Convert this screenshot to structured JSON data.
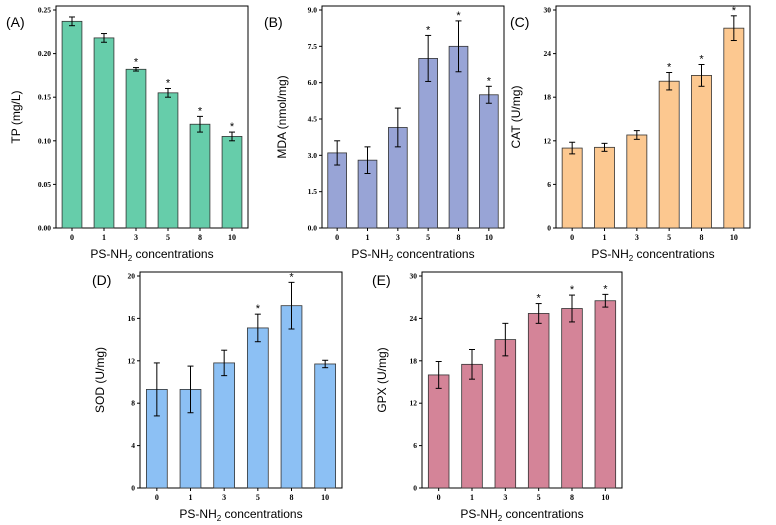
{
  "chart_data": [
    {
      "type": "bar",
      "panel_label": "(A)",
      "categories": [
        "0",
        "1",
        "3",
        "5",
        "8",
        "10"
      ],
      "values": [
        0.237,
        0.218,
        0.182,
        0.155,
        0.119,
        0.105
      ],
      "errors": [
        0.005,
        0.005,
        0.002,
        0.005,
        0.009,
        0.005
      ],
      "significant": [
        false,
        false,
        true,
        true,
        true,
        true
      ],
      "ylabel": "TP (mg/L)",
      "xlabel": "PS-NH2 concentrations",
      "ylim": [
        0,
        0.25
      ],
      "yticks": [
        "0.00",
        "0.05",
        "0.10",
        "0.15",
        "0.20",
        "0.25"
      ],
      "color": "#66cdaa"
    },
    {
      "type": "bar",
      "panel_label": "(B)",
      "categories": [
        "0",
        "1",
        "3",
        "5",
        "8",
        "10"
      ],
      "values": [
        3.1,
        2.8,
        4.15,
        7.0,
        7.5,
        5.5
      ],
      "errors": [
        0.5,
        0.55,
        0.8,
        0.95,
        1.05,
        0.35
      ],
      "significant": [
        false,
        false,
        false,
        true,
        true,
        true
      ],
      "ylabel": "MDA (nmol/mg)",
      "xlabel": "PS-NH2 concentrations",
      "ylim": [
        0,
        9.0
      ],
      "yticks": [
        "0.0",
        "1.5",
        "3.0",
        "4.5",
        "6.0",
        "7.5",
        "9.0"
      ],
      "color": "#98a4d6"
    },
    {
      "type": "bar",
      "panel_label": "(C)",
      "categories": [
        "0",
        "1",
        "3",
        "5",
        "8",
        "10"
      ],
      "values": [
        11.0,
        11.1,
        12.8,
        20.2,
        21.0,
        27.5
      ],
      "errors": [
        0.8,
        0.55,
        0.6,
        1.2,
        1.5,
        1.7
      ],
      "significant": [
        false,
        false,
        false,
        true,
        true,
        true
      ],
      "ylabel": "CAT (U/mg)",
      "xlabel": "PS-NH2 concentrations",
      "ylim": [
        0,
        30
      ],
      "yticks": [
        "0",
        "6",
        "12",
        "18",
        "24",
        "30"
      ],
      "color": "#fcc890"
    },
    {
      "type": "bar",
      "panel_label": "(D)",
      "categories": [
        "0",
        "1",
        "3",
        "5",
        "8",
        "10"
      ],
      "values": [
        9.3,
        9.3,
        11.8,
        15.1,
        17.2,
        11.7
      ],
      "errors": [
        2.5,
        2.2,
        1.2,
        1.3,
        2.2,
        0.35
      ],
      "significant": [
        false,
        false,
        false,
        true,
        true,
        false
      ],
      "ylabel": "SOD (U/mg)",
      "xlabel": "PS-NH2 concentrations",
      "ylim": [
        0,
        20
      ],
      "yticks": [
        "0",
        "4",
        "8",
        "12",
        "16",
        "20"
      ],
      "color": "#8cc0f4"
    },
    {
      "type": "bar",
      "panel_label": "(E)",
      "categories": [
        "0",
        "1",
        "3",
        "5",
        "8",
        "10"
      ],
      "values": [
        16.0,
        17.5,
        21.0,
        24.7,
        25.4,
        26.5
      ],
      "errors": [
        1.9,
        2.1,
        2.3,
        1.4,
        1.9,
        0.9
      ],
      "significant": [
        false,
        false,
        false,
        true,
        true,
        true
      ],
      "ylabel": "GPX (U/mg)",
      "xlabel": "PS-NH2 concentrations",
      "ylim": [
        0,
        30
      ],
      "yticks": [
        "0",
        "6",
        "12",
        "18",
        "24",
        "30"
      ],
      "color": "#d48498"
    }
  ]
}
